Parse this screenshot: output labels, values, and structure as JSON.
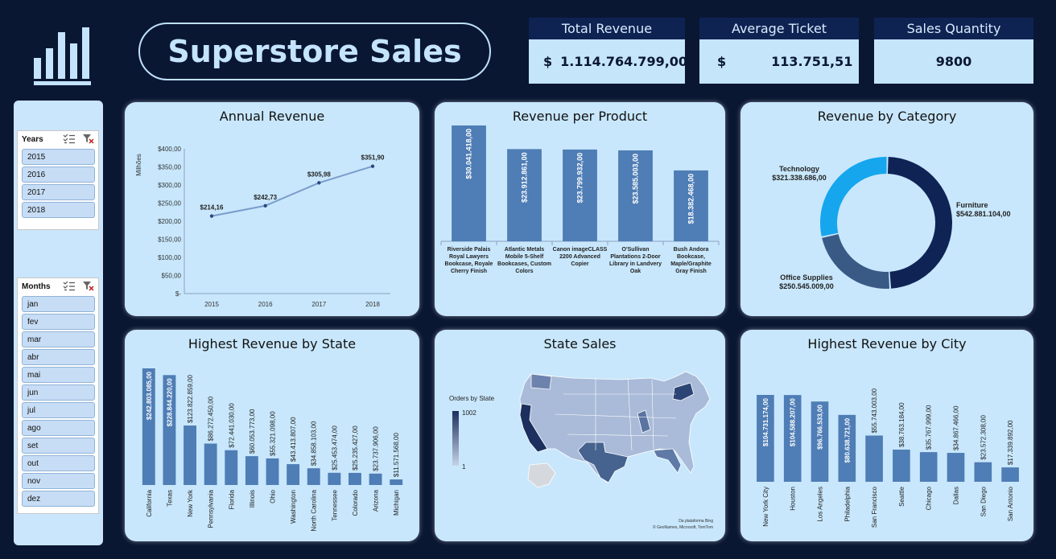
{
  "header": {
    "title": "Superstore Sales"
  },
  "kpis": [
    {
      "label": "Total Revenue",
      "currency": "$",
      "value": "1.114.764.799,00"
    },
    {
      "label": "Average Ticket",
      "currency": "$",
      "value": "113.751,51"
    },
    {
      "label": "Sales Quantity",
      "value": "9800"
    }
  ],
  "slicers": {
    "years": {
      "title": "Years",
      "items": [
        "2015",
        "2016",
        "2017",
        "2018"
      ]
    },
    "months": {
      "title": "Months",
      "items": [
        "jan",
        "fev",
        "mar",
        "abr",
        "mai",
        "jun",
        "jul",
        "ago",
        "set",
        "out",
        "nov",
        "dez"
      ]
    }
  },
  "map": {
    "legend_title": "Orders by State",
    "legend_max": "1002",
    "legend_min": "1",
    "attribution_line1": "Da plataforma Bing",
    "attribution_line2": "© GeoNames, Microsoft, TomTom",
    "colors": {
      "low": "#c6d3e6",
      "high": "#1c2f5e"
    }
  },
  "colors": {
    "accent": "#0e2352",
    "bar": "#4f7db5",
    "line": "#7a9ccb",
    "card": "#c8e7fc"
  },
  "chart_data": [
    {
      "type": "line",
      "title": "Annual Revenue",
      "ylabel": "Milhões",
      "x": [
        "2015",
        "2016",
        "2017",
        "2018"
      ],
      "values": [
        214.16,
        242.73,
        305.98,
        351.9
      ],
      "value_labels": [
        "$214,16",
        "$242,73",
        "$305,98",
        "$351,90"
      ],
      "ylim": [
        0,
        400
      ],
      "yticks": [
        "$-",
        "$50,00",
        "$100,00",
        "$150,00",
        "$200,00",
        "$250,00",
        "$300,00",
        "$350,00",
        "$400,00"
      ]
    },
    {
      "type": "bar",
      "title": "Revenue per Product",
      "categories": [
        "Riverside Palais Royal Lawyers Bookcase, Royale Cherry Finish",
        "Atlantic Metals Mobile 5-Shelf Bookcases, Custom Colors",
        "Canon imageCLASS 2200 Advanced Copier",
        "O'Sullivan Plantations 2-Door Library in Landvery Oak",
        "Bush Andora Bookcase, Maple/Graphite Gray Finish"
      ],
      "category_lines": [
        [
          "Riverside Palais",
          "Royal Lawyers",
          "Bookcase, Royale",
          "Cherry Finish"
        ],
        [
          "Atlantic Metals",
          "Mobile 5-Shelf",
          "Bookcases, Custom",
          "Colors"
        ],
        [
          "Canon imageCLASS",
          "2200 Advanced",
          "Copier"
        ],
        [
          "O'Sullivan",
          "Plantations 2-Door",
          "Library in Landvery",
          "Oak"
        ],
        [
          "Bush Andora",
          "Bookcase,",
          "Maple/Graphite",
          "Gray Finish"
        ]
      ],
      "values": [
        30041418,
        23912861,
        23799932,
        23585003,
        18382468
      ],
      "value_labels": [
        "$30.041.418,00",
        "$23.912.861,00",
        "$23.799.932,00",
        "$23.585.003,00",
        "$18.382.468,00"
      ]
    },
    {
      "type": "pie",
      "title": "Revenue by Category",
      "categories": [
        "Furniture",
        "Office Supplies",
        "Technology"
      ],
      "values": [
        542881104,
        250545009,
        321338686
      ],
      "value_labels": [
        "$542.881.104,00",
        "$250.545.009,00",
        "$321.338.686,00"
      ],
      "colors": [
        "#0f2355",
        "#3a5a86",
        "#15a6ee"
      ]
    },
    {
      "type": "bar",
      "title": "Highest Revenue by State",
      "categories": [
        "California",
        "Texas",
        "New York",
        "Pennsylvania",
        "Florida",
        "Illinois",
        "Ohio",
        "Washington",
        "North Carolina",
        "Tennessee",
        "Colorado",
        "Arizona",
        "Michigan"
      ],
      "values": [
        242803085,
        228844220,
        123822859,
        86272450,
        72441030,
        60053773,
        55321098,
        43413807,
        34858103,
        25453474,
        25235427,
        23737906,
        11571568
      ],
      "value_labels": [
        "$242.803.085,00",
        "$228.844.220,00",
        "$123.822.859,00",
        "$86.272.450,00",
        "$72.441.030,00",
        "$60.053.773,00",
        "$55.321.098,00",
        "$43.413.807,00",
        "$34.858.103,00",
        "$25.453.474,00",
        "$25.235.427,00",
        "$23.737.906,00",
        "$11.571.568,00"
      ]
    },
    {
      "type": "bar",
      "title": "Highest Revenue by City",
      "categories": [
        "New York City",
        "Houston",
        "Los Angeles",
        "Philadelphia",
        "San Francisco",
        "Seattle",
        "Chicago",
        "Dallas",
        "San Diego",
        "San Antonio"
      ],
      "values": [
        104731174,
        104588207,
        96766533,
        80638721,
        55743003,
        38763184,
        35767999,
        34867466,
        23572308,
        17339892
      ],
      "value_labels": [
        "$104.731.174,00",
        "$104.588.207,00",
        "$96.766.533,00",
        "$80.638.721,00",
        "$55.743.003,00",
        "$38.763.184,00",
        "$35.767.999,00",
        "$34.867.466,00",
        "$23.572.308,00",
        "$17.339.892,00"
      ]
    },
    {
      "type": "map",
      "title": "State Sales"
    }
  ]
}
